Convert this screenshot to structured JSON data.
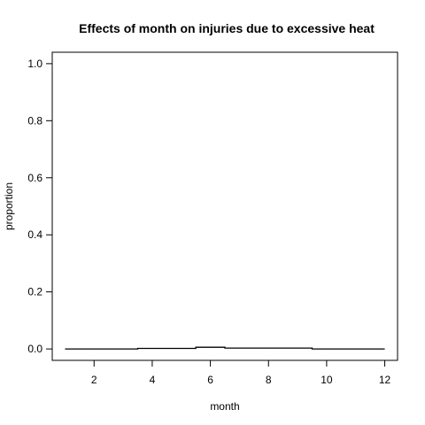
{
  "chart_data": {
    "type": "line",
    "title": "Effects of month on injuries due to excessive heat",
    "xlabel": "month",
    "ylabel": "proportion",
    "xlim": [
      0.56,
      12.44
    ],
    "ylim": [
      -0.04,
      1.04
    ],
    "x_ticks": [
      2,
      4,
      6,
      8,
      10,
      12
    ],
    "y_ticks": [
      0.0,
      0.2,
      0.4,
      0.6,
      0.8,
      1.0
    ],
    "y_tick_labels": [
      "0.0",
      "0.2",
      "0.4",
      "0.6",
      "0.8",
      "1.0"
    ],
    "grid": false,
    "x": [
      1,
      2,
      3,
      4,
      5,
      6,
      7,
      8,
      9,
      10,
      11,
      12
    ],
    "values": [
      0.0,
      0.0,
      0.0,
      0.002,
      0.002,
      0.006,
      0.003,
      0.003,
      0.003,
      0.0,
      0.0,
      0.0
    ]
  }
}
